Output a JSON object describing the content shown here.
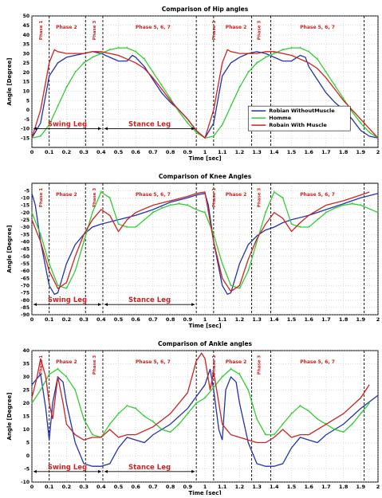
{
  "colors": {
    "robian_without": "#2233aa",
    "homme": "#33cc33",
    "robian_with": "#cc2222",
    "phase_text": "#cc2222",
    "leg_text": "#cc2222",
    "grid": "#aaaaaa",
    "phase_line": "#000000"
  },
  "chart_data": [
    {
      "type": "line",
      "title": "Comparison of Hip angles",
      "xlabel": "Time [sec]",
      "ylabel": "Angle [Degree]",
      "xlim": [
        0,
        2
      ],
      "ylim": [
        -20,
        50
      ],
      "xticks": [
        "0",
        "0.1",
        "0.2",
        "0.3",
        "0.4",
        "0.5",
        "0.6",
        "0.7",
        "0.8",
        "0.9",
        "1",
        "1.1",
        "1.2",
        "1.3",
        "1.4",
        "1.5",
        "1.6",
        "1.7",
        "1.8",
        "1.9",
        "2"
      ],
      "yticks": [
        "-15",
        "-10",
        "-5",
        "0",
        "5",
        "10",
        "15",
        "20",
        "25",
        "30",
        "35",
        "40",
        "45",
        "50"
      ],
      "grid": true,
      "legend": {
        "placement": "lower-right",
        "entries": [
          "Robian WithoutMuscle",
          "Homme",
          "Robain With Muscle"
        ]
      },
      "phases": [
        {
          "label": "Phase 1",
          "x": 0.05
        },
        {
          "label": "Phase 2",
          "x": 0.2
        },
        {
          "label": "Phase 3",
          "x": 0.36
        },
        {
          "label": "Phase 5, 6, 7",
          "x": 0.7
        },
        {
          "label": "Phase 1",
          "x": 1.05
        },
        {
          "label": "Phase 2",
          "x": 1.18
        },
        {
          "label": "Phase 3",
          "x": 1.31
        },
        {
          "label": "Phase 5, 6, 7",
          "x": 1.65
        }
      ],
      "phase_lines": [
        0.1,
        0.31,
        0.41,
        0.95,
        1.05,
        1.27,
        1.38,
        1.92
      ],
      "legs": [
        {
          "label": "Swing Leg",
          "from": 0.0,
          "to": 0.41,
          "y": -10
        },
        {
          "label": "Stance Leg",
          "from": 0.41,
          "to": 0.95,
          "y": -10
        }
      ],
      "series": [
        {
          "name": "Robian WithoutMuscle",
          "color_key": "robian_without",
          "x": [
            0,
            0.05,
            0.1,
            0.15,
            0.2,
            0.3,
            0.35,
            0.4,
            0.45,
            0.5,
            0.55,
            0.58,
            0.6,
            0.65,
            0.7,
            0.75,
            0.8,
            0.85,
            0.9,
            0.95,
            1.0,
            1.05,
            1.1,
            1.15,
            1.2,
            1.25,
            1.3,
            1.35,
            1.4,
            1.45,
            1.5,
            1.55,
            1.58,
            1.6,
            1.65,
            1.7,
            1.75,
            1.8,
            1.85,
            1.9,
            1.95,
            2.0
          ],
          "y": [
            -15,
            -7,
            18,
            25,
            28,
            30,
            31,
            30,
            28,
            26,
            26,
            29,
            28,
            23,
            16,
            9,
            4,
            0,
            -5,
            -11,
            -15,
            -7,
            18,
            25,
            28,
            30,
            31,
            30,
            28,
            26,
            26,
            29,
            28,
            23,
            16,
            9,
            4,
            0,
            -5,
            -11,
            -14,
            -15
          ]
        },
        {
          "name": "Homme",
          "color_key": "homme",
          "x": [
            0,
            0.05,
            0.1,
            0.15,
            0.2,
            0.25,
            0.3,
            0.35,
            0.4,
            0.45,
            0.5,
            0.55,
            0.6,
            0.65,
            0.7,
            0.75,
            0.8,
            0.85,
            0.9,
            0.95,
            1.0,
            1.05,
            1.1,
            1.15,
            1.2,
            1.25,
            1.3,
            1.35,
            1.4,
            1.45,
            1.5,
            1.55,
            1.6,
            1.65,
            1.7,
            1.75,
            1.8,
            1.85,
            1.9,
            1.95,
            2.0
          ],
          "y": [
            -15,
            -14,
            -8,
            2,
            12,
            20,
            25,
            28,
            30,
            32,
            33,
            33,
            31,
            27,
            20,
            13,
            6,
            -1,
            -7,
            -12,
            -15,
            -14,
            -8,
            2,
            12,
            20,
            25,
            28,
            30,
            32,
            33,
            33,
            31,
            27,
            20,
            13,
            6,
            -1,
            -7,
            -12,
            -15
          ]
        },
        {
          "name": "Robain With Muscle",
          "color_key": "robian_with",
          "x": [
            0,
            0.05,
            0.1,
            0.13,
            0.15,
            0.2,
            0.3,
            0.35,
            0.4,
            0.45,
            0.5,
            0.55,
            0.6,
            0.65,
            0.7,
            0.75,
            0.8,
            0.85,
            0.9,
            0.95,
            1.0,
            1.05,
            1.1,
            1.13,
            1.15,
            1.2,
            1.3,
            1.35,
            1.4,
            1.45,
            1.5,
            1.55,
            1.6,
            1.65,
            1.7,
            1.75,
            1.8,
            1.85,
            1.9,
            1.95,
            2.0
          ],
          "y": [
            -15,
            0,
            25,
            32,
            31,
            30,
            30,
            31,
            31,
            30,
            29,
            27,
            25,
            22,
            17,
            11,
            5,
            0,
            -5,
            -11,
            -15,
            0,
            25,
            32,
            31,
            30,
            30,
            31,
            31,
            30,
            29,
            27,
            25,
            22,
            17,
            11,
            5,
            0,
            -5,
            -10,
            -15
          ]
        }
      ]
    },
    {
      "type": "line",
      "title": "Comparison of Knee Angles",
      "xlabel": "Time [sec]",
      "ylabel": "Angle [Degree]",
      "xlim": [
        0,
        2
      ],
      "ylim": [
        -90,
        0
      ],
      "xticks": [
        "0",
        "0.1",
        "0.2",
        "0.3",
        "0.4",
        "0.5",
        "0.6",
        "0.7",
        "0.8",
        "0.9",
        "1",
        "1.1",
        "1.2",
        "1.3",
        "1.4",
        "1.5",
        "1.6",
        "1.7",
        "1.8",
        "1.9",
        "2"
      ],
      "yticks": [
        "-5",
        "-10",
        "-15",
        "-20",
        "-25",
        "-30",
        "-35",
        "-40",
        "-45",
        "-50",
        "-55",
        "-60",
        "-65",
        "-70",
        "-75",
        "-80",
        "-85",
        "-90"
      ],
      "grid": true,
      "phases": [
        {
          "label": "Phase 1",
          "x": 0.05
        },
        {
          "label": "Phase 2",
          "x": 0.2
        },
        {
          "label": "Phase 3",
          "x": 0.36
        },
        {
          "label": "Phase 5, 6, 7",
          "x": 0.7
        },
        {
          "label": "Phase 1",
          "x": 1.05
        },
        {
          "label": "Phase 2",
          "x": 1.18
        },
        {
          "label": "Phase 3",
          "x": 1.31
        },
        {
          "label": "Phase 5, 6, 7",
          "x": 1.65
        }
      ],
      "phase_lines": [
        0.1,
        0.31,
        0.41,
        0.95,
        1.05,
        1.27,
        1.38,
        1.92
      ],
      "legs": [
        {
          "label": "Swing Leg",
          "from": 0.0,
          "to": 0.41,
          "y": -83
        },
        {
          "label": "Stance Leg",
          "from": 0.41,
          "to": 0.95,
          "y": -83
        }
      ],
      "series": [
        {
          "name": "Robian WithoutMuscle",
          "color_key": "robian_without",
          "x": [
            0,
            0.02,
            0.05,
            0.1,
            0.13,
            0.15,
            0.2,
            0.25,
            0.3,
            0.35,
            0.4,
            0.5,
            0.6,
            0.7,
            0.8,
            0.9,
            0.95,
            1.0,
            1.02,
            1.05,
            1.1,
            1.13,
            1.15,
            1.2,
            1.25,
            1.3,
            1.35,
            1.4,
            1.45,
            1.5,
            1.6,
            1.7,
            1.8,
            1.9,
            2.0
          ],
          "y": [
            -7,
            -15,
            -40,
            -70,
            -76,
            -75,
            -55,
            -42,
            -35,
            -30,
            -28,
            -25,
            -22,
            -18,
            -13,
            -10,
            -8,
            -7,
            -15,
            -40,
            -70,
            -76,
            -75,
            -55,
            -42,
            -36,
            -32,
            -30,
            -27,
            -25,
            -22,
            -18,
            -14,
            -10,
            -7
          ]
        },
        {
          "name": "Homme",
          "color_key": "homme",
          "x": [
            0,
            0.05,
            0.1,
            0.15,
            0.2,
            0.25,
            0.3,
            0.35,
            0.4,
            0.45,
            0.5,
            0.55,
            0.6,
            0.65,
            0.7,
            0.75,
            0.8,
            0.85,
            0.9,
            0.95,
            1.0,
            1.05,
            1.1,
            1.15,
            1.2,
            1.25,
            1.3,
            1.35,
            1.4,
            1.45,
            1.5,
            1.55,
            1.6,
            1.65,
            1.7,
            1.75,
            1.8,
            1.85,
            1.9,
            2.0
          ],
          "y": [
            -20,
            -35,
            -55,
            -70,
            -72,
            -60,
            -40,
            -20,
            -6,
            -10,
            -28,
            -30,
            -30,
            -25,
            -20,
            -17,
            -15,
            -14,
            -15,
            -18,
            -20,
            -35,
            -55,
            -70,
            -72,
            -60,
            -40,
            -20,
            -6,
            -10,
            -28,
            -30,
            -30,
            -25,
            -20,
            -17,
            -15,
            -14,
            -15,
            -20
          ]
        },
        {
          "name": "Robain With Muscle",
          "color_key": "robian_with",
          "x": [
            0,
            0.05,
            0.1,
            0.15,
            0.2,
            0.25,
            0.3,
            0.35,
            0.4,
            0.45,
            0.5,
            0.55,
            0.6,
            0.7,
            0.8,
            0.9,
            0.95,
            1.0,
            1.05,
            1.1,
            1.15,
            1.2,
            1.25,
            1.3,
            1.35,
            1.4,
            1.45,
            1.5,
            1.55,
            1.6,
            1.7,
            1.8,
            1.9,
            1.95
          ],
          "y": [
            -25,
            -40,
            -60,
            -72,
            -68,
            -50,
            -35,
            -25,
            -18,
            -22,
            -33,
            -25,
            -20,
            -15,
            -12,
            -9,
            -7,
            -6,
            -40,
            -65,
            -74,
            -70,
            -52,
            -38,
            -28,
            -20,
            -24,
            -33,
            -27,
            -22,
            -15,
            -12,
            -8,
            -6
          ]
        }
      ]
    },
    {
      "type": "line",
      "title": "Comparison of Ankle angles",
      "xlabel": "Time [sec]",
      "ylabel": "Angle [Degree]",
      "xlim": [
        0,
        2
      ],
      "ylim": [
        -10,
        40
      ],
      "xticks": [
        "0",
        "0.1",
        "0.2",
        "0.3",
        "0.4",
        "0.5",
        "0.6",
        "0.7",
        "0.8",
        "0.9",
        "1",
        "1.1",
        "1.2",
        "1.3",
        "1.4",
        "1.5",
        "1.6",
        "1.7",
        "1.8",
        "1.9",
        "2"
      ],
      "yticks": [
        "-10",
        "-5",
        "0",
        "5",
        "10",
        "15",
        "20",
        "25",
        "30",
        "35",
        "40"
      ],
      "grid": true,
      "phases": [
        {
          "label": "Phase 1",
          "x": 0.05
        },
        {
          "label": "Phase 2",
          "x": 0.2
        },
        {
          "label": "Phase 3",
          "x": 0.36
        },
        {
          "label": "Phase 5, 6, 7",
          "x": 0.7
        },
        {
          "label": "Phase 1",
          "x": 1.05
        },
        {
          "label": "Phase 2",
          "x": 1.18
        },
        {
          "label": "Phase 3",
          "x": 1.31
        },
        {
          "label": "Phase 5, 6, 7",
          "x": 1.65
        }
      ],
      "phase_lines": [
        0.1,
        0.31,
        0.41,
        0.95,
        1.05,
        1.27,
        1.38,
        1.92
      ],
      "legs": [
        {
          "label": "Swing Leg",
          "from": 0.0,
          "to": 0.41,
          "y": -6
        },
        {
          "label": "Stance Leg",
          "from": 0.41,
          "to": 0.95,
          "y": -6
        }
      ],
      "series": [
        {
          "name": "Robian WithoutMuscle",
          "color_key": "robian_without",
          "x": [
            0,
            0.05,
            0.08,
            0.1,
            0.12,
            0.15,
            0.18,
            0.2,
            0.25,
            0.3,
            0.35,
            0.4,
            0.45,
            0.5,
            0.55,
            0.6,
            0.65,
            0.7,
            0.8,
            0.9,
            1.0,
            1.03,
            1.05,
            1.08,
            1.1,
            1.12,
            1.15,
            1.18,
            1.2,
            1.25,
            1.3,
            1.35,
            1.4,
            1.45,
            1.5,
            1.55,
            1.6,
            1.65,
            1.7,
            1.8,
            1.9,
            2.0
          ],
          "y": [
            27,
            31,
            18,
            6,
            20,
            30,
            28,
            20,
            5,
            -3,
            -4,
            -4,
            -3,
            3,
            7,
            6,
            5,
            8,
            12,
            18,
            27,
            33,
            25,
            10,
            6,
            25,
            30,
            28,
            20,
            5,
            -3,
            -4,
            -4,
            -3,
            3,
            7,
            6,
            5,
            8,
            12,
            18,
            23
          ]
        },
        {
          "name": "Homme",
          "color_key": "homme",
          "x": [
            0,
            0.05,
            0.1,
            0.15,
            0.2,
            0.25,
            0.3,
            0.35,
            0.4,
            0.45,
            0.5,
            0.55,
            0.6,
            0.65,
            0.7,
            0.75,
            0.8,
            0.85,
            0.9,
            0.95,
            1.0,
            1.05,
            1.1,
            1.15,
            1.2,
            1.25,
            1.3,
            1.35,
            1.4,
            1.45,
            1.5,
            1.55,
            1.6,
            1.65,
            1.7,
            1.75,
            1.8,
            1.85,
            1.9,
            1.95
          ],
          "y": [
            20,
            25,
            31,
            33,
            30,
            25,
            14,
            8,
            7,
            12,
            16,
            19,
            18,
            15,
            13,
            10,
            9,
            12,
            16,
            20,
            22,
            26,
            30,
            33,
            31,
            25,
            14,
            8,
            8,
            12,
            16,
            19,
            17,
            14,
            12,
            10,
            9,
            12,
            16,
            20
          ]
        },
        {
          "name": "Robain With Muscle",
          "color_key": "robian_with",
          "x": [
            0,
            0.03,
            0.05,
            0.08,
            0.1,
            0.12,
            0.15,
            0.18,
            0.2,
            0.25,
            0.3,
            0.35,
            0.4,
            0.45,
            0.5,
            0.55,
            0.6,
            0.7,
            0.8,
            0.9,
            0.95,
            0.98,
            1.0,
            1.03,
            1.05,
            1.08,
            1.1,
            1.15,
            1.2,
            1.25,
            1.3,
            1.35,
            1.4,
            1.45,
            1.5,
            1.55,
            1.6,
            1.7,
            1.8,
            1.9,
            1.95
          ],
          "y": [
            22,
            30,
            37,
            30,
            20,
            14,
            30,
            20,
            12,
            8,
            6,
            7,
            7,
            10,
            7,
            8,
            8,
            11,
            16,
            24,
            36,
            39,
            37,
            25,
            32,
            20,
            12,
            8,
            7,
            6,
            5,
            5,
            7,
            10,
            7,
            8,
            8,
            12,
            16,
            22,
            27
          ]
        }
      ]
    }
  ]
}
